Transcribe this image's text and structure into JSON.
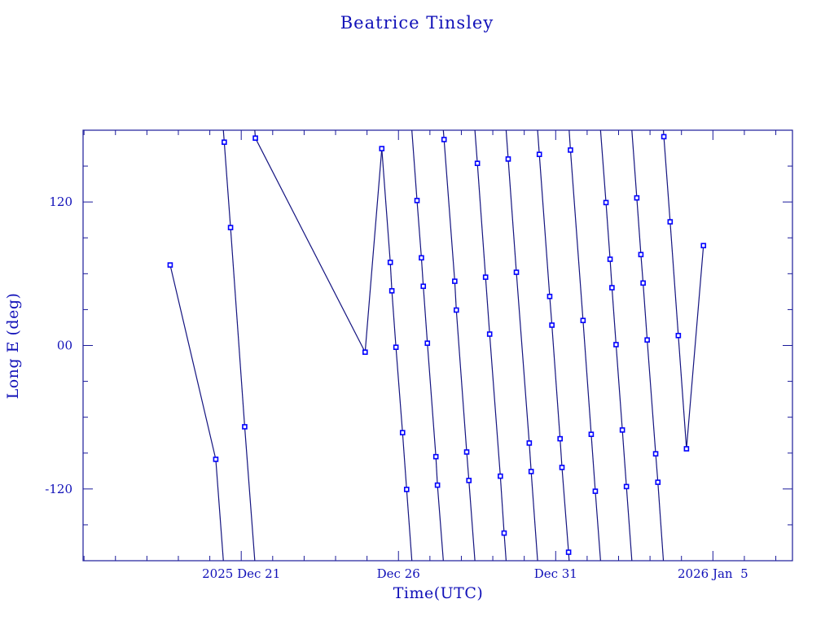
{
  "chart_data": {
    "type": "line",
    "title": "Beatrice Tinsley",
    "xlabel": "Time(UTC)",
    "ylabel": "Long E (deg)",
    "x_units": "days since 2025 Dec 21 00:00 UTC",
    "xlim": [
      -5.03,
      17.53
    ],
    "ylim": [
      -180,
      180
    ],
    "wrap_longitude": true,
    "grid": false,
    "x_major_ticks": [
      {
        "value": 0,
        "label": "2025 Dec 21"
      },
      {
        "value": 5,
        "label": "Dec 26"
      },
      {
        "value": 10,
        "label": "Dec 31"
      },
      {
        "value": 15,
        "label": "2026 Jan  5"
      }
    ],
    "x_minor_step": 1,
    "y_major_ticks": [
      {
        "value": 120,
        "label": "120"
      },
      {
        "value": 0,
        "label": "00"
      },
      {
        "value": -120,
        "label": "-120"
      }
    ],
    "y_minor_step": 30,
    "colors": {
      "axis": "#1a1a9a",
      "line": "#141480",
      "marker": "#0000ff",
      "text": "#1010b8"
    },
    "series": [
      {
        "name": "Long E",
        "x": [
          -2.26,
          -0.81,
          -0.54,
          -0.34,
          0.11,
          0.45,
          3.94,
          4.47,
          4.74,
          4.79,
          4.92,
          5.13,
          5.26,
          5.59,
          5.73,
          5.79,
          5.92,
          6.19,
          6.24,
          6.45,
          6.79,
          6.84,
          7.17,
          7.24,
          7.51,
          7.77,
          7.9,
          8.24,
          8.36,
          8.49,
          8.75,
          9.16,
          9.22,
          9.48,
          9.81,
          9.88,
          10.14,
          10.2,
          10.41,
          10.47,
          10.87,
          11.13,
          11.26,
          11.6,
          11.73,
          11.79,
          11.92,
          12.12,
          12.25,
          12.58,
          12.71,
          12.78,
          12.91,
          13.18,
          13.25,
          13.44,
          13.64,
          13.9,
          14.16,
          14.7
        ],
        "y": [
          67.3,
          -95.2,
          170.0,
          98.6,
          -68.0,
          173.4,
          -5.6,
          164.6,
          69.5,
          45.7,
          -1.5,
          -72.9,
          -120.4,
          121.2,
          73.3,
          49.5,
          1.9,
          -93.0,
          -116.8,
          172.2,
          53.7,
          29.6,
          -89.1,
          -112.9,
          152.3,
          57.1,
          9.5,
          -109.3,
          -156.9,
          155.9,
          61.2,
          -81.6,
          -105.4,
          159.8,
          41.0,
          17.0,
          -78.0,
          -102.0,
          -172.9,
          163.4,
          20.9,
          -74.3,
          -121.9,
          119.5,
          72.1,
          48.3,
          0.7,
          -70.7,
          -118.0,
          123.4,
          76.0,
          52.2,
          4.6,
          -90.6,
          -114.4,
          174.6,
          103.4,
          8.3,
          -86.4,
          83.5
        ]
      }
    ]
  }
}
